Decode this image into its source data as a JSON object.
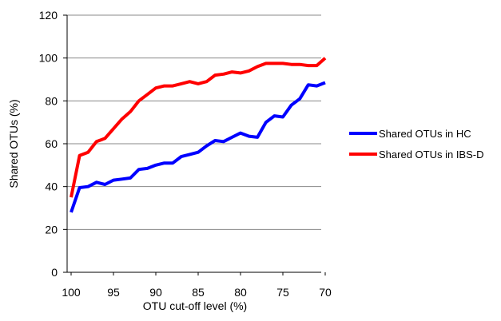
{
  "chart_data": {
    "type": "line",
    "title": "",
    "xlabel": "OTU cut-off  level (%)",
    "ylabel": "Shared OTUs (%)",
    "xlim": [
      100,
      70
    ],
    "ylim": [
      0,
      120
    ],
    "x_ticks": [
      100,
      95,
      90,
      85,
      80,
      75,
      70
    ],
    "y_ticks": [
      0,
      20,
      40,
      60,
      80,
      100,
      120
    ],
    "grid": "horizontal",
    "legend_position": "right",
    "x": [
      100,
      99,
      98,
      97,
      96,
      95,
      94,
      93,
      92,
      91,
      90,
      89,
      88,
      87,
      86,
      85,
      84,
      83,
      82,
      81,
      80,
      79,
      78,
      77,
      76,
      75,
      74,
      73,
      72,
      71,
      70
    ],
    "series": [
      {
        "name": "Shared OTUs in HC",
        "color": "#0000ff",
        "values": [
          28,
          39.5,
          40,
          42,
          41,
          43,
          43.5,
          44,
          48,
          48.5,
          50,
          51,
          51,
          54,
          55,
          56,
          59,
          61.5,
          61,
          63,
          65,
          63.5,
          63,
          70,
          73,
          72.5,
          78,
          81,
          87.5,
          87,
          88.5
        ]
      },
      {
        "name": "Shared OTUs in IBS-D",
        "color": "#ff0000",
        "values": [
          35,
          54.5,
          56,
          61,
          62.5,
          67,
          71.5,
          75,
          80,
          83,
          86,
          87,
          87,
          88,
          89,
          88,
          89,
          92,
          92.5,
          93.5,
          93,
          94,
          96,
          97.5,
          97.5,
          97.5,
          97,
          97,
          96.5,
          96.5,
          100
        ]
      }
    ]
  }
}
